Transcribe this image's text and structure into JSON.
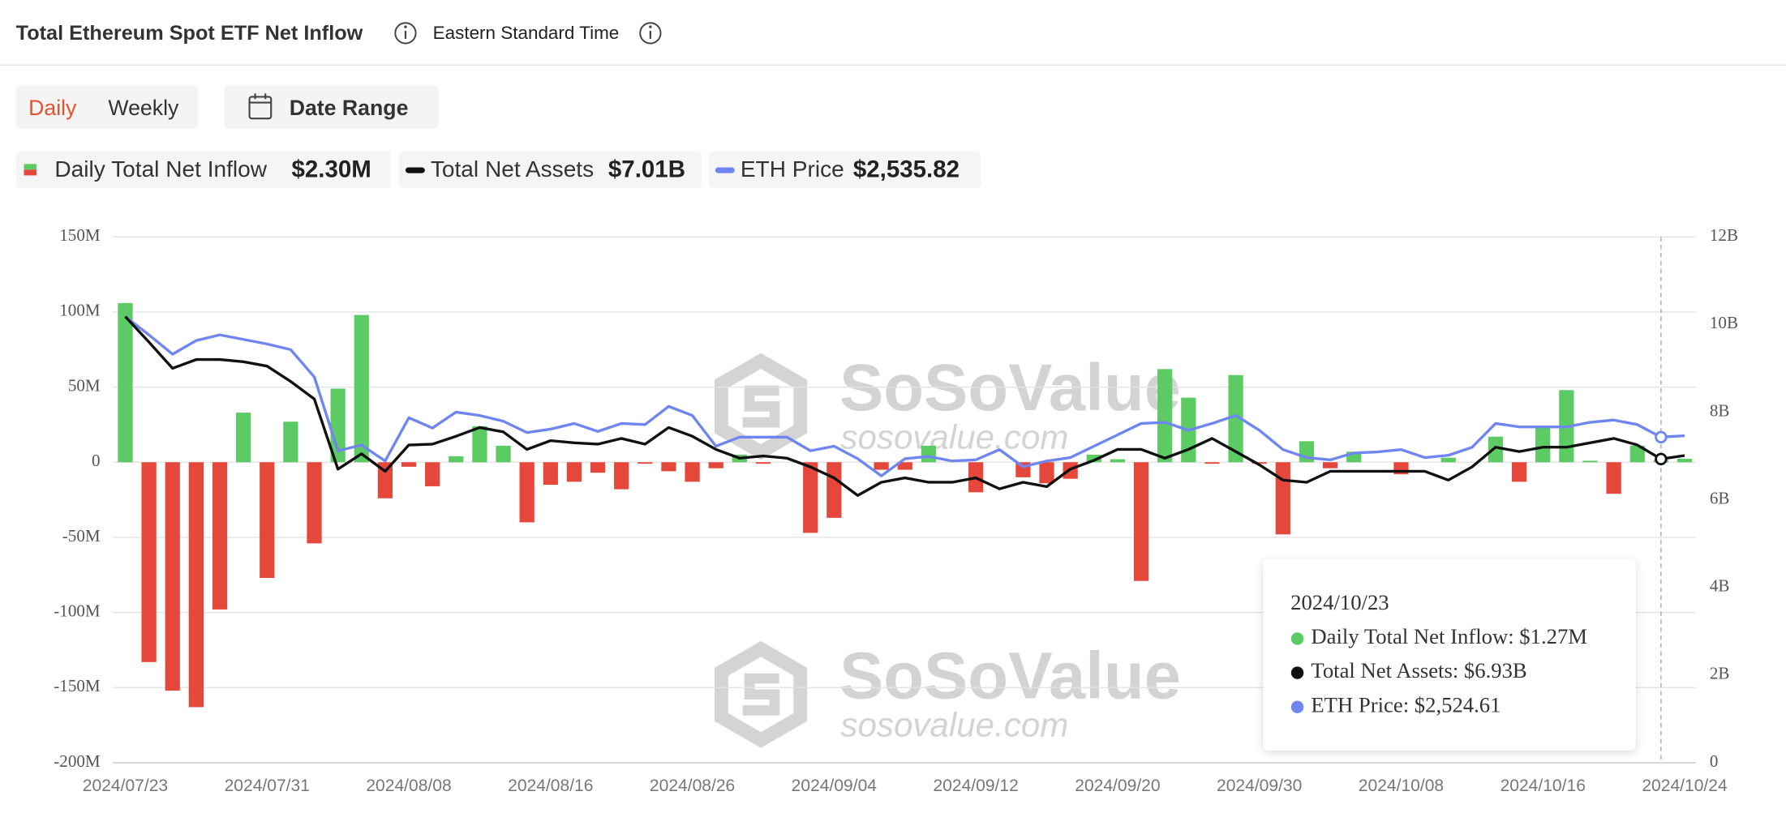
{
  "header": {
    "title": "Total Ethereum Spot ETF Net Inflow",
    "timezone": "Eastern Standard Time"
  },
  "tabs": {
    "active": "Daily",
    "other": "Weekly",
    "date_range": "Date Range"
  },
  "watermark": {
    "brand": "SoSoValue",
    "site": "sosovalue.com"
  },
  "chart_data": {
    "type": "bar",
    "categories": [
      "2024/07/23",
      null,
      null,
      null,
      null,
      null,
      "2024/07/31",
      null,
      null,
      null,
      null,
      null,
      "2024/08/08",
      null,
      null,
      null,
      null,
      null,
      "2024/08/16",
      null,
      null,
      null,
      null,
      null,
      "2024/08/26",
      null,
      null,
      null,
      null,
      null,
      "2024/09/04",
      null,
      null,
      null,
      null,
      null,
      "2024/09/12",
      null,
      null,
      null,
      null,
      null,
      "2024/09/20",
      null,
      null,
      null,
      null,
      null,
      "2024/09/30",
      null,
      null,
      null,
      null,
      null,
      "2024/10/08",
      null,
      null,
      null,
      null,
      null,
      "2024/10/16",
      null,
      null,
      null,
      null,
      null,
      "2024/10/24"
    ],
    "series": [
      {
        "name": "Daily Total Net Inflow",
        "type": "bar",
        "axis": "y",
        "color": "#5dcb63",
        "negative_color": "#e6473b",
        "latest_label": "$2.30M",
        "values": [
          106,
          -133,
          -152,
          -163,
          -98,
          33,
          -77,
          27,
          -54,
          49,
          98,
          -24,
          -3,
          -16,
          4,
          24,
          11,
          -40,
          -15,
          -13,
          -7,
          -18,
          -1,
          -6,
          -13,
          -4,
          5,
          -1,
          0,
          -47,
          -37,
          0,
          -5,
          -5,
          11,
          0,
          -20,
          0,
          -10,
          -14,
          -11,
          5,
          2,
          -79,
          62,
          43,
          -1,
          58,
          -1,
          -48,
          14,
          -4,
          7,
          0,
          -8,
          0,
          3,
          0,
          17,
          -13,
          24,
          48,
          1,
          -21,
          11,
          1.27,
          2.3
        ]
      },
      {
        "name": "Total Net Assets",
        "type": "line",
        "axis": "y2",
        "color": "#111111",
        "latest_label": "$7.01B",
        "values": [
          10.18,
          9.6,
          9.0,
          9.2,
          9.2,
          9.15,
          9.05,
          8.7,
          8.3,
          6.7,
          7.05,
          6.65,
          7.25,
          7.27,
          7.45,
          7.65,
          7.55,
          7.15,
          7.35,
          7.3,
          7.27,
          7.4,
          7.27,
          7.65,
          7.45,
          7.15,
          6.95,
          7.0,
          6.95,
          6.75,
          6.5,
          6.1,
          6.4,
          6.5,
          6.4,
          6.4,
          6.5,
          6.25,
          6.4,
          6.3,
          6.7,
          6.9,
          7.15,
          7.15,
          6.95,
          7.15,
          7.4,
          7.1,
          6.8,
          6.45,
          6.4,
          6.65,
          6.65,
          6.65,
          6.65,
          6.65,
          6.45,
          6.75,
          7.2,
          7.1,
          7.2,
          7.2,
          7.3,
          7.4,
          7.25,
          6.93,
          7.01
        ]
      },
      {
        "name": "ETH Price",
        "type": "line",
        "color": "#6f86f0",
        "latest_label": "$2,535.82",
        "values": [
          3479,
          3334,
          3181,
          3289,
          3334,
          3298,
          3262,
          3217,
          3001,
          2417,
          2462,
          2336,
          2678,
          2597,
          2723,
          2696,
          2651,
          2561,
          2588,
          2633,
          2570,
          2633,
          2624,
          2768,
          2696,
          2453,
          2525,
          2525,
          2525,
          2417,
          2453,
          2354,
          2218,
          2354,
          2372,
          2336,
          2345,
          2426,
          2291,
          2336,
          2363,
          2453,
          2543,
          2633,
          2642,
          2579,
          2633,
          2696,
          2579,
          2426,
          2363,
          2345,
          2399,
          2408,
          2426,
          2363,
          2381,
          2444,
          2633,
          2606,
          2606,
          2606,
          2642,
          2660,
          2624,
          2524.61,
          2535.82
        ]
      }
    ],
    "ylim": [
      -200,
      150
    ],
    "yticks": [
      {
        "value": 150,
        "label": "150M"
      },
      {
        "value": 100,
        "label": "100M"
      },
      {
        "value": 50,
        "label": "50M"
      },
      0,
      {
        "value": -50,
        "label": "-50M"
      },
      {
        "value": -100,
        "label": "-100M"
      },
      {
        "value": -150,
        "label": "-150M"
      },
      {
        "value": -200,
        "label": "-200M"
      }
    ],
    "y2lim": [
      0,
      12
    ],
    "y2ticks": [
      {
        "value": 12,
        "label": "12B"
      },
      {
        "value": 10,
        "label": "10B"
      },
      {
        "value": 8,
        "label": "8B"
      },
      {
        "value": 6,
        "label": "6B"
      },
      {
        "value": 4,
        "label": "4B"
      },
      {
        "value": 2,
        "label": "2B"
      },
      0
    ],
    "grid": true,
    "tooltip": {
      "date": "2024/10/23",
      "items": [
        "Daily Total Net Inflow: $1.27M",
        "Total Net Assets: $6.93B",
        "ETH Price: $2,524.61"
      ]
    }
  }
}
